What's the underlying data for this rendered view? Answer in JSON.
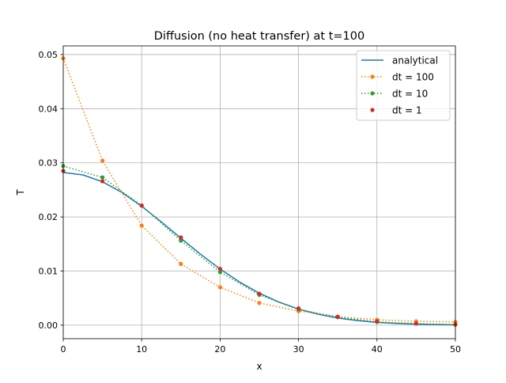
{
  "chart_data": {
    "type": "line",
    "title": "Diffusion (no heat transfer) at t=100",
    "xlabel": "x",
    "ylabel": "T",
    "xlim": [
      0,
      50
    ],
    "ylim": [
      -0.0025,
      0.0516
    ],
    "xticks": [
      0,
      10,
      20,
      30,
      40,
      50
    ],
    "xtick_labels": [
      "0",
      "10",
      "20",
      "30",
      "40",
      "50"
    ],
    "yticks": [
      0,
      0.01,
      0.02,
      0.03,
      0.04,
      0.05
    ],
    "ytick_labels": [
      "0.00",
      "0.01",
      "0.02",
      "0.03",
      "0.04",
      "0.05"
    ],
    "grid": true,
    "legend_position": "top-right",
    "series": [
      {
        "name": "analytical",
        "color": "#1f77b4",
        "style": "solid",
        "marker": "none",
        "x": [
          0,
          2.5,
          5,
          7.5,
          10,
          12.5,
          15,
          17.5,
          20,
          22.5,
          25,
          27.5,
          30,
          32.5,
          35,
          37.5,
          40,
          42.5,
          45,
          47.5,
          50
        ],
        "y": [
          0.0282,
          0.02776,
          0.02649,
          0.0245,
          0.02196,
          0.01908,
          0.01607,
          0.01312,
          0.01037,
          0.00796,
          0.00591,
          0.00426,
          0.00297,
          0.00201,
          0.00132,
          0.00084,
          0.00052,
          0.00031,
          0.00018,
          0.0001,
          5e-05
        ]
      },
      {
        "name": "dt = 100",
        "color": "#ff7f0e",
        "style": "dotted",
        "marker": "dot",
        "x": [
          0,
          5,
          10,
          15,
          20,
          25,
          30,
          35,
          40,
          45,
          50
        ],
        "y": [
          0.0493,
          0.0304,
          0.0184,
          0.0113,
          0.007,
          0.0041,
          0.0026,
          0.0016,
          0.001,
          0.0007,
          0.0006
        ]
      },
      {
        "name": "dt = 10",
        "color": "#2ca02c",
        "style": "dotted",
        "marker": "dot",
        "x": [
          0,
          5,
          10,
          15,
          20,
          25,
          30,
          35,
          40,
          45,
          50
        ],
        "y": [
          0.0294,
          0.0273,
          0.0221,
          0.0156,
          0.0098,
          0.0056,
          0.0029,
          0.0015,
          0.0006,
          0.0003,
          0.0001
        ]
      },
      {
        "name": "dt = 1",
        "color": "#d62728",
        "style": "none",
        "marker": "dot",
        "x": [
          0,
          5,
          10,
          15,
          20,
          25,
          30,
          35,
          40,
          45,
          50
        ],
        "y": [
          0.0285,
          0.0266,
          0.0221,
          0.0162,
          0.0104,
          0.0058,
          0.0031,
          0.0015,
          0.0007,
          0.0003,
          0.0001
        ]
      }
    ]
  }
}
